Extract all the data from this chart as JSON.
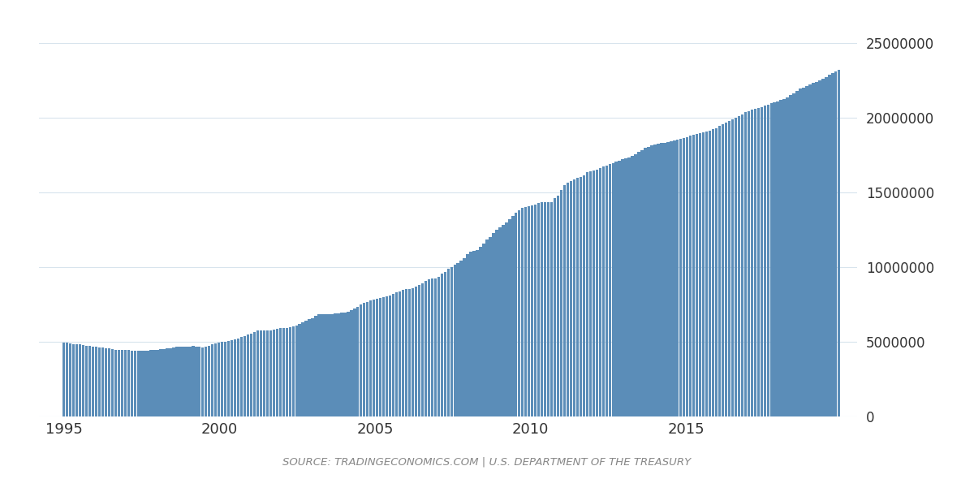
{
  "title": "",
  "source_text": "SOURCE: TRADINGECONOMICS.COM | U.S. DEPARTMENT OF THE TREASURY",
  "bar_color": "#5b8db8",
  "background_color": "#ffffff",
  "grid_color": "#d8e4ed",
  "ylim": [
    0,
    25000000
  ],
  "yticks": [
    0,
    5000000,
    10000000,
    15000000,
    20000000,
    25000000
  ],
  "xlabel_years": [
    1995,
    2000,
    2005,
    2010,
    2015
  ],
  "debt_data": [
    4973982,
    4961189,
    4920348,
    4877570,
    4857781,
    4828892,
    4790040,
    4743492,
    4718337,
    4691395,
    4666088,
    4641816,
    4619408,
    4591372,
    4554607,
    4524992,
    4494899,
    4485451,
    4480396,
    4466950,
    4446485,
    4429217,
    4417918,
    4396693,
    4410366,
    4418167,
    4434762,
    4444657,
    4454590,
    4474023,
    4500672,
    4532437,
    4559987,
    4601826,
    4651053,
    4671060,
    4676178,
    4671649,
    4686700,
    4714400,
    4726200,
    4688900,
    4661200,
    4654000,
    4691000,
    4757700,
    4837800,
    4901800,
    4963900,
    5012800,
    5009600,
    5045700,
    5109800,
    5174000,
    5248400,
    5325400,
    5412700,
    5488200,
    5565700,
    5674200,
    5752000,
    5769800,
    5771500,
    5776700,
    5788500,
    5832200,
    5900400,
    5930600,
    5943600,
    5944300,
    5985100,
    6071400,
    6113700,
    6198900,
    6316000,
    6406600,
    6508200,
    6616000,
    6726700,
    6836100,
    6872900,
    6874300,
    6872800,
    6878200,
    6905200,
    6908700,
    6951300,
    6977900,
    7032500,
    7132900,
    7220100,
    7362700,
    7496600,
    7601900,
    7689900,
    7783600,
    7837700,
    7906400,
    7959700,
    8005700,
    8049800,
    8111700,
    8198700,
    8302500,
    8399300,
    8476200,
    8539800,
    8568900,
    8625500,
    8724600,
    8841600,
    8950900,
    9062200,
    9177900,
    9239900,
    9270200,
    9371500,
    9555100,
    9695000,
    9879300,
    10024700,
    10163500,
    10308800,
    10454000,
    10628000,
    10859300,
    11018500,
    11109700,
    11127800,
    11345700,
    11614400,
    11837500,
    12031300,
    12292500,
    12532100,
    12680600,
    12810900,
    13025400,
    13196700,
    13420200,
    13625400,
    13840100,
    13975600,
    14044500,
    14110000,
    14145000,
    14212000,
    14287600,
    14344900,
    14344900,
    14344900,
    14344900,
    14638700,
    14790500,
    15154000,
    15476200,
    15682100,
    15770900,
    15870800,
    15975800,
    16057600,
    16160100,
    16353700,
    16432700,
    16449500,
    16521300,
    16662700,
    16743600,
    16828600,
    16896500,
    16983500,
    17054500,
    17139500,
    17227200,
    17278600,
    17372600,
    17454500,
    17587300,
    17702700,
    17853600,
    17971600,
    18074400,
    18141300,
    18209500,
    18256700,
    18301700,
    18328600,
    18388300,
    18444700,
    18496900,
    18545200,
    18581100,
    18638500,
    18700000,
    18787500,
    18870200,
    18921600,
    18963400,
    19012900,
    19067700,
    19144600,
    19222900,
    19325300,
    19459500,
    19573900,
    19702600,
    19798300,
    19897700,
    20001700,
    20102900,
    20247700,
    20366900,
    20467200,
    20562700,
    20611900,
    20669600,
    20728100,
    20835000,
    20877700,
    20960100,
    21058900,
    21117800,
    21191900,
    21259900,
    21375900,
    21516100,
    21630400,
    21799300,
    21938600,
    22023800,
    22124200,
    22232400,
    22334500,
    22420500,
    22519700,
    22612700,
    22708500,
    22879800,
    23014800,
    23100700,
    23205200
  ]
}
